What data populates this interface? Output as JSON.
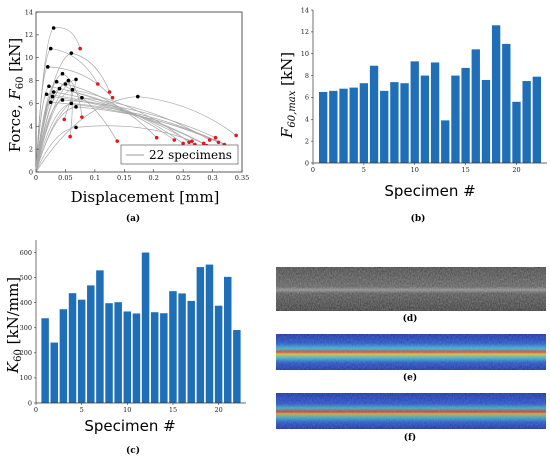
{
  "captions": [
    "(a)",
    "(b)",
    "(c)",
    "(d)",
    "(e)",
    "(f)"
  ],
  "chart_data": [
    {
      "id": "a",
      "type": "line",
      "xlabel": "Displacement [mm]",
      "ylabel": "Force, F60 [kN]",
      "ylabel_main": "Force, ",
      "ylabel_var": "F",
      "ylabel_sub": "60",
      "ylabel_unit": " [kN]",
      "xlim": [
        0,
        0.35
      ],
      "ylim": [
        0,
        14
      ],
      "xticks": [
        "0",
        "0.05",
        "0.1",
        "0.15",
        "0.2",
        "0.25",
        "0.3",
        "0.35"
      ],
      "yticks": [
        "0",
        "2",
        "4",
        "6",
        "8",
        "10",
        "12",
        "14"
      ],
      "legend": "22 specimens",
      "peak_points": [
        [
          0.03,
          12.6
        ],
        [
          0.025,
          10.8
        ],
        [
          0.06,
          10.4
        ],
        [
          0.02,
          9.2
        ],
        [
          0.045,
          8.6
        ],
        [
          0.068,
          8.1
        ],
        [
          0.055,
          8.0
        ],
        [
          0.035,
          7.9
        ],
        [
          0.05,
          7.7
        ],
        [
          0.022,
          7.5
        ],
        [
          0.04,
          7.3
        ],
        [
          0.062,
          7.2
        ],
        [
          0.03,
          7.0
        ],
        [
          0.018,
          6.8
        ],
        [
          0.028,
          6.6
        ],
        [
          0.078,
          6.5
        ],
        [
          0.045,
          6.3
        ],
        [
          0.025,
          6.1
        ],
        [
          0.06,
          6.0
        ],
        [
          0.068,
          5.7
        ],
        [
          0.173,
          6.6
        ],
        [
          0.068,
          3.9
        ]
      ],
      "end_points": [
        [
          0.075,
          10.8
        ],
        [
          0.105,
          7.7
        ],
        [
          0.125,
          7.0
        ],
        [
          0.13,
          6.5
        ],
        [
          0.078,
          4.8
        ],
        [
          0.048,
          4.6
        ],
        [
          0.058,
          3.1
        ],
        [
          0.138,
          2.7
        ],
        [
          0.205,
          3.0
        ],
        [
          0.235,
          2.8
        ],
        [
          0.25,
          2.5
        ],
        [
          0.26,
          2.6
        ],
        [
          0.27,
          2.4
        ],
        [
          0.285,
          2.5
        ],
        [
          0.29,
          2.3
        ],
        [
          0.295,
          2.8
        ],
        [
          0.305,
          3.0
        ],
        [
          0.31,
          2.6
        ],
        [
          0.32,
          2.4
        ],
        [
          0.335,
          2.1
        ],
        [
          0.34,
          3.2
        ],
        [
          0.265,
          2.7
        ]
      ]
    },
    {
      "id": "b",
      "type": "bar",
      "xlabel": "Specimen #",
      "ylabel": "F60,max [kN]",
      "ylabel_var": "F",
      "ylabel_sub": "60,max",
      "ylabel_unit": " [kN]",
      "categories": [
        1,
        2,
        3,
        4,
        5,
        6,
        7,
        8,
        9,
        10,
        11,
        12,
        13,
        14,
        15,
        16,
        17,
        18,
        19,
        20,
        21,
        22
      ],
      "values": [
        6.5,
        6.6,
        6.8,
        6.9,
        7.3,
        8.9,
        6.6,
        7.4,
        7.3,
        9.3,
        8.0,
        9.2,
        3.9,
        8.0,
        8.7,
        10.4,
        7.6,
        12.6,
        10.9,
        5.6,
        7.5,
        7.9
      ],
      "xlim": [
        0,
        23
      ],
      "ylim": [
        0,
        14
      ],
      "xticks": [
        "0",
        "5",
        "10",
        "15",
        "20"
      ],
      "yticks": [
        "0",
        "2",
        "4",
        "6",
        "8",
        "10",
        "12",
        "14"
      ]
    },
    {
      "id": "c",
      "type": "bar",
      "xlabel": "Specimen #",
      "ylabel": "K60 [kN/mm]",
      "ylabel_var": "K",
      "ylabel_sub": "60",
      "ylabel_unit": " [kN/mm]",
      "categories": [
        1,
        2,
        3,
        4,
        5,
        6,
        7,
        8,
        9,
        10,
        11,
        12,
        13,
        14,
        15,
        16,
        17,
        18,
        19,
        20,
        21,
        22
      ],
      "values": [
        338,
        241,
        374,
        438,
        412,
        469,
        529,
        398,
        402,
        365,
        357,
        600,
        362,
        358,
        446,
        437,
        407,
        542,
        552,
        388,
        503,
        291
      ],
      "xlim": [
        0,
        23
      ],
      "ylim": [
        0,
        650
      ],
      "xticks": [
        "0",
        "5",
        "10",
        "15",
        "20"
      ],
      "yticks": [
        "0",
        "100",
        "200",
        "300",
        "400",
        "500",
        "600"
      ]
    }
  ]
}
